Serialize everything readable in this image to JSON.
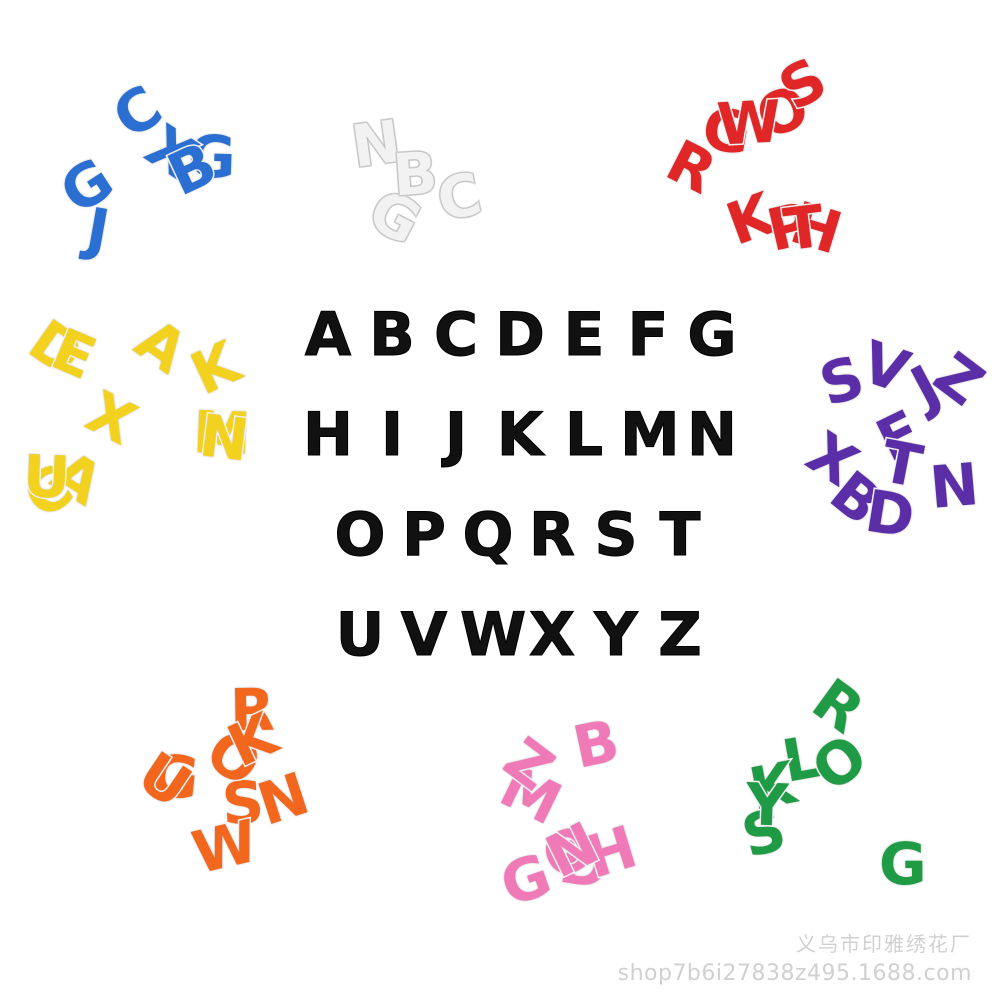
{
  "alphabet": {
    "color": "#111111",
    "rows": [
      [
        "A",
        "B",
        "C",
        "D",
        "E",
        "F",
        "G"
      ],
      [
        "H",
        "I",
        "J",
        "K",
        "L",
        "M",
        "N"
      ],
      [
        "O",
        "P",
        "Q",
        "R",
        "S",
        "T"
      ],
      [
        "U",
        "V",
        "W",
        "X",
        "Y",
        "Z"
      ]
    ]
  },
  "clusters": [
    {
      "name": "blue-patch-cluster",
      "color": "#2a6fd1",
      "visible_letters": [
        "G",
        "X",
        "C",
        "G",
        "J",
        "B"
      ]
    },
    {
      "name": "white-patch-cluster",
      "color": "#f2f2f2",
      "visible_letters": [
        "G",
        "N",
        "C",
        "B"
      ]
    },
    {
      "name": "red-patch-cluster",
      "color": "#e02626",
      "visible_letters": [
        "H",
        "K",
        "P",
        "O",
        "R",
        "G",
        "T",
        "W",
        "S"
      ]
    },
    {
      "name": "yellow-patch-cluster",
      "color": "#f2d21f",
      "visible_letters": [
        "A",
        "C",
        "D",
        "M",
        "N",
        "A",
        "U",
        "K",
        "X",
        "E"
      ]
    },
    {
      "name": "purple-patch-cluster",
      "color": "#5b2ea8",
      "visible_letters": [
        "F",
        "N",
        "B",
        "D",
        "X",
        "V",
        "Z",
        "J",
        "S",
        "T"
      ]
    },
    {
      "name": "orange-patch-cluster",
      "color": "#f3661d",
      "visible_letters": [
        "G",
        "R",
        "S",
        "N",
        "O",
        "K",
        "W",
        "U"
      ]
    },
    {
      "name": "pink-patch-cluster",
      "color": "#f07ab8",
      "visible_letters": [
        "G",
        "D",
        "M",
        "B",
        "Z",
        "H",
        "O",
        "N"
      ]
    },
    {
      "name": "green-patch-cluster",
      "color": "#1f9b45",
      "visible_letters": [
        "G",
        "R",
        "L",
        "O",
        "S",
        "K",
        "Y"
      ]
    }
  ],
  "watermark": {
    "name": "义乌市印雅绣花厂",
    "url": "shop7b6i27838z495.1688.com"
  }
}
